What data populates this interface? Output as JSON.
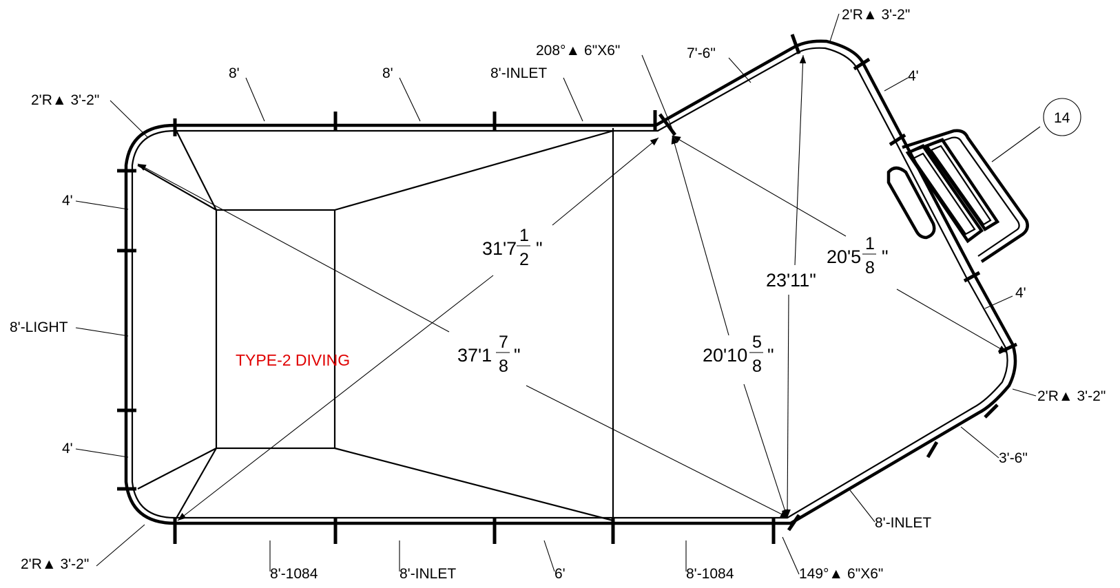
{
  "pool_type": "TYPE-2 DIVING",
  "callout_number": "14",
  "wall_labels": {
    "top_1": "8'",
    "top_2": "8'",
    "top_3": "8'-INLET",
    "angle_top": "208°▲ 6\"X6\"",
    "seg_7_6": "7'-6\"",
    "radius_top_right": "2'R▲ 3'-2\"",
    "right_4_upper": "4'",
    "right_4_lower": "4'",
    "radius_right": "2'R▲ 3'-2\"",
    "seg_3_6": "3'-6\"",
    "bottom_right_inlet": "8'-INLET",
    "angle_bottom": "149°▲ 6\"X6\"",
    "bottom_1084_right": "8'-1084",
    "bottom_6": "6'",
    "bottom_inlet": "8'-INLET",
    "bottom_1084_left": "8'-1084",
    "radius_bottom_left": "2'R▲ 3'-2\"",
    "left_4_lower": "4'",
    "left_light": "8'-LIGHT",
    "left_4_upper": "4'",
    "radius_top_left": "2'R▲ 3'-2\""
  },
  "dimensions": {
    "d1": {
      "whole": "31'7",
      "num": "1",
      "den": "2"
    },
    "d2": {
      "whole": "37'1",
      "num": "7",
      "den": "8"
    },
    "d3": {
      "whole": "20'10",
      "num": "5",
      "den": "8"
    },
    "d4": {
      "whole": "23'11\""
    },
    "d5": {
      "whole": "20'5",
      "num": "1",
      "den": "8"
    }
  },
  "inch_mark": "\""
}
